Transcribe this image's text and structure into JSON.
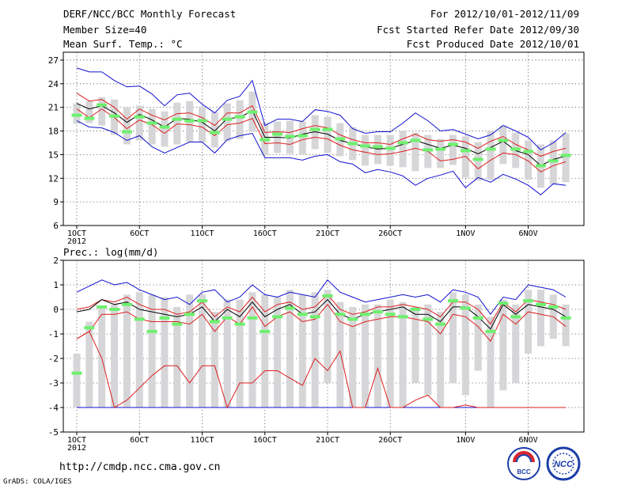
{
  "header": {
    "title": "DERF/NCC/BCC Monthly Forecast",
    "member_size": "Member Size=40",
    "variable": "Mean Surf. Temp.: °C",
    "period": "For 2012/10/01-2012/11/09",
    "fcst_started": "Fcst Started Refer Date 2012/09/30",
    "fcst_produced": "Fcst Produced Date 2012/10/01"
  },
  "footer": {
    "url": "http://cmdp.ncc.cma.gov.cn",
    "credit": "GrADS: COLA/IGES"
  },
  "logos": {
    "left_text": "BCC",
    "right_text": "NCC"
  },
  "colors": {
    "box": "#d6d6d8",
    "median": "#000000",
    "spread": "#dd1f1f",
    "extreme": "#1010d0",
    "obs": "#6ef06e",
    "grid": "#555555"
  },
  "chart_data": [
    {
      "type": "line",
      "title": "Mean Surf. Temp.: °C",
      "ylabel": "°C",
      "ylim": [
        6,
        28
      ],
      "yticks": [
        6,
        9,
        12,
        15,
        18,
        21,
        24,
        27
      ],
      "xlim": [
        1,
        40
      ],
      "x": [
        1,
        2,
        3,
        4,
        5,
        6,
        7,
        8,
        9,
        10,
        11,
        12,
        13,
        14,
        15,
        16,
        17,
        18,
        19,
        20,
        21,
        22,
        23,
        24,
        25,
        26,
        27,
        28,
        29,
        30,
        31,
        32,
        33,
        34,
        35,
        36,
        37,
        38,
        39,
        40
      ],
      "xticks": [
        {
          "day": 1,
          "label": "1OCT",
          "sublabel": "2012"
        },
        {
          "day": 6,
          "label": "6OCT"
        },
        {
          "day": 11,
          "label": "11OCT"
        },
        {
          "day": 16,
          "label": "16OCT"
        },
        {
          "day": 21,
          "label": "21OCT"
        },
        {
          "day": 26,
          "label": "26OCT"
        },
        {
          "day": 32,
          "label": "1NOV"
        },
        {
          "day": 37,
          "label": "6NOV"
        }
      ],
      "series": [
        {
          "name": "box_top",
          "values": [
            21.5,
            21.8,
            22.3,
            22.0,
            21.0,
            21.2,
            20.8,
            20.5,
            21.6,
            21.8,
            21.1,
            20.4,
            21.5,
            21.9,
            23.0,
            19.0,
            19.2,
            19.3,
            19.2,
            20.0,
            19.8,
            19.0,
            18.5,
            17.5,
            17.5,
            17.5,
            18.0,
            17.8,
            17.5,
            17.0,
            17.5,
            17.3,
            16.6,
            18.0,
            18.7,
            17.8,
            16.8,
            16.3,
            16.8,
            17.7
          ]
        },
        {
          "name": "box_bottom",
          "values": [
            18.9,
            19.0,
            18.7,
            17.5,
            16.3,
            16.8,
            16.3,
            16.0,
            16.3,
            16.6,
            16.6,
            15.9,
            16.7,
            17.0,
            17.9,
            14.9,
            15.2,
            15.1,
            15.0,
            15.7,
            15.2,
            14.8,
            14.3,
            13.6,
            13.8,
            13.6,
            13.4,
            12.9,
            13.3,
            13.3,
            13.7,
            12.1,
            11.7,
            11.8,
            13.8,
            13.3,
            11.8,
            10.8,
            11.2,
            11.5
          ]
        },
        {
          "name": "maximum",
          "values": [
            26.0,
            25.5,
            25.5,
            24.4,
            23.6,
            23.7,
            22.7,
            21.2,
            22.6,
            22.8,
            21.4,
            20.3,
            21.9,
            22.4,
            24.4,
            18.7,
            19.5,
            19.5,
            19.2,
            20.7,
            20.5,
            20.0,
            18.3,
            17.7,
            17.9,
            17.9,
            19.0,
            20.3,
            19.3,
            18.0,
            18.2,
            17.6,
            17.0,
            17.5,
            18.7,
            18.0,
            17.2,
            15.6,
            16.5,
            17.8
          ]
        },
        {
          "name": "upper_spread",
          "values": [
            22.8,
            21.8,
            22.0,
            21.0,
            19.5,
            20.8,
            20.0,
            19.4,
            20.2,
            20.3,
            19.7,
            18.7,
            20.3,
            20.3,
            21.2,
            17.8,
            17.9,
            17.8,
            18.3,
            18.7,
            18.4,
            17.5,
            16.9,
            16.5,
            16.5,
            16.3,
            17.0,
            17.6,
            16.9,
            16.7,
            16.9,
            16.6,
            15.8,
            16.7,
            17.3,
            16.3,
            15.6,
            14.8,
            15.4,
            15.8
          ]
        },
        {
          "name": "median",
          "values": [
            21.5,
            20.8,
            21.2,
            20.3,
            19.1,
            20.1,
            19.4,
            18.5,
            19.6,
            19.5,
            19.1,
            18.0,
            19.6,
            19.7,
            20.6,
            17.2,
            17.2,
            17.1,
            17.6,
            17.9,
            17.6,
            16.8,
            16.4,
            16.0,
            15.7,
            15.8,
            16.3,
            16.8,
            16.3,
            15.8,
            16.2,
            15.8,
            15.1,
            15.9,
            16.7,
            15.5,
            15.0,
            13.6,
            14.4,
            14.8
          ]
        },
        {
          "name": "lower_spread",
          "values": [
            20.8,
            19.7,
            20.8,
            19.7,
            18.3,
            19.4,
            18.8,
            17.7,
            18.9,
            18.8,
            18.5,
            17.4,
            18.8,
            19.0,
            19.6,
            16.4,
            16.5,
            16.3,
            16.9,
            17.2,
            17.0,
            16.2,
            15.6,
            15.3,
            15.0,
            15.1,
            15.4,
            15.8,
            15.4,
            14.2,
            14.4,
            14.8,
            13.2,
            14.3,
            15.2,
            15.0,
            14.2,
            12.8,
            13.6,
            14.1
          ]
        },
        {
          "name": "minimum",
          "values": [
            19.3,
            18.5,
            18.4,
            17.8,
            16.8,
            17.4,
            16.0,
            15.2,
            15.9,
            16.6,
            16.6,
            15.2,
            16.9,
            17.4,
            17.7,
            14.6,
            14.6,
            14.6,
            14.3,
            14.8,
            15.0,
            14.1,
            13.8,
            12.7,
            13.1,
            12.8,
            12.3,
            11.1,
            12.0,
            12.4,
            12.9,
            10.8,
            12.1,
            11.5,
            12.5,
            11.9,
            11.1,
            9.9,
            11.3,
            11.1
          ]
        },
        {
          "name": "observation",
          "values": [
            20.0,
            19.6,
            21.3,
            19.9,
            17.9,
            19.8,
            19.0,
            18.5,
            19.5,
            19.3,
            19.3,
            17.8,
            19.5,
            19.8,
            20.4,
            16.9,
            17.6,
            17.3,
            17.4,
            18.2,
            18.2,
            17.0,
            16.4,
            16.1,
            16.0,
            15.8,
            16.5,
            16.8,
            15.6,
            15.7,
            16.3,
            15.5,
            14.4,
            15.7,
            16.8,
            15.7,
            15.4,
            13.6,
            14.2,
            14.9
          ]
        }
      ]
    },
    {
      "type": "line",
      "title": "Prec.: log(mm/d)",
      "ylabel": "log(mm/d)",
      "ylim": [
        -5,
        2
      ],
      "yticks": [
        -5,
        -4,
        -3,
        -2,
        -1,
        0,
        1,
        2
      ],
      "xlim": [
        1,
        40
      ],
      "x": [
        1,
        2,
        3,
        4,
        5,
        6,
        7,
        8,
        9,
        10,
        11,
        12,
        13,
        14,
        15,
        16,
        17,
        18,
        19,
        20,
        21,
        22,
        23,
        24,
        25,
        26,
        27,
        28,
        29,
        30,
        31,
        32,
        33,
        34,
        35,
        36,
        37,
        38,
        39,
        40
      ],
      "xticks": [
        {
          "day": 1,
          "label": "1OCT",
          "sublabel": "2012"
        },
        {
          "day": 6,
          "label": "6OCT"
        },
        {
          "day": 11,
          "label": "11OCT"
        },
        {
          "day": 16,
          "label": "16OCT"
        },
        {
          "day": 21,
          "label": "21OCT"
        },
        {
          "day": 26,
          "label": "26OCT"
        },
        {
          "day": 32,
          "label": "1NOV"
        },
        {
          "day": 37,
          "label": "6NOV"
        }
      ],
      "series": [
        {
          "name": "box_top",
          "values": [
            -1.8,
            -0.5,
            0.1,
            0.2,
            0.6,
            0.7,
            0.6,
            0.5,
            0.1,
            0.6,
            0.6,
            -0.1,
            0.4,
            0.4,
            0.7,
            0.6,
            0.5,
            0.8,
            0.6,
            0.7,
            0.8,
            0.3,
            0.1,
            0.2,
            0.2,
            0.4,
            0.3,
            0.1,
            0.2,
            -0.1,
            0.7,
            0.6,
            0.2,
            -0.3,
            0.4,
            0.2,
            0.8,
            0.8,
            0.6,
            0.2
          ]
        },
        {
          "name": "box_bottom",
          "values": [
            -4.0,
            -4.0,
            -4.0,
            -4.0,
            -4.0,
            -4.0,
            -4.0,
            -4.0,
            -4.0,
            -4.0,
            -4.0,
            -4.0,
            -4.0,
            -4.0,
            -4.0,
            -4.0,
            -4.0,
            -4.0,
            -4.0,
            -4.0,
            -3.0,
            -4.0,
            -4.0,
            -4.0,
            -4.0,
            -4.0,
            -4.0,
            -3.0,
            -3.5,
            -4.0,
            -3.0,
            -3.5,
            -2.5,
            -4.0,
            -3.3,
            -3.0,
            -1.8,
            -1.5,
            -1.2,
            -1.5
          ]
        },
        {
          "name": "maximum",
          "values": [
            0.7,
            0.95,
            1.2,
            1.0,
            1.1,
            0.8,
            0.6,
            0.4,
            0.5,
            0.2,
            0.7,
            0.8,
            0.3,
            0.5,
            1.0,
            0.6,
            0.5,
            0.7,
            0.6,
            0.5,
            1.2,
            0.7,
            0.5,
            0.3,
            0.4,
            0.5,
            0.6,
            0.5,
            0.6,
            0.3,
            0.8,
            0.7,
            0.5,
            -0.2,
            0.5,
            0.4,
            1.0,
            0.9,
            0.8,
            0.5
          ]
        },
        {
          "name": "upper_spread",
          "values": [
            0.0,
            0.1,
            0.4,
            0.3,
            0.5,
            0.2,
            0.0,
            0.0,
            -0.2,
            -0.1,
            0.3,
            -0.3,
            0.1,
            -0.1,
            0.5,
            -0.1,
            0.2,
            0.3,
            0.0,
            0.1,
            0.6,
            0.0,
            -0.2,
            -0.1,
            0.1,
            0.1,
            0.2,
            0.1,
            0.0,
            -0.3,
            0.3,
            0.3,
            0.0,
            -0.6,
            0.3,
            -0.1,
            0.4,
            0.3,
            0.2,
            0.0
          ]
        },
        {
          "name": "median",
          "values": [
            -0.1,
            0.0,
            0.4,
            0.2,
            0.3,
            0.0,
            -0.1,
            -0.2,
            -0.3,
            -0.2,
            0.1,
            -0.5,
            0.0,
            -0.3,
            0.3,
            -0.3,
            0.0,
            0.2,
            -0.2,
            -0.1,
            0.4,
            -0.2,
            -0.4,
            -0.2,
            -0.1,
            0.0,
            0.1,
            -0.2,
            -0.2,
            -0.5,
            0.1,
            0.1,
            -0.3,
            -0.8,
            0.2,
            -0.2,
            0.2,
            0.1,
            0.0,
            -0.3
          ]
        },
        {
          "name": "lower_spread",
          "values": [
            -1.2,
            -0.9,
            -0.2,
            -0.2,
            -0.1,
            -0.4,
            -0.5,
            -0.5,
            -0.5,
            -0.6,
            -0.2,
            -0.9,
            -0.3,
            -0.6,
            0.1,
            -0.7,
            -0.3,
            -0.1,
            -0.5,
            -0.4,
            0.2,
            -0.5,
            -0.7,
            -0.5,
            -0.4,
            -0.3,
            -0.3,
            -0.4,
            -0.5,
            -1.0,
            -0.2,
            -0.3,
            -0.7,
            -1.3,
            -0.2,
            -0.6,
            -0.1,
            -0.2,
            -0.3,
            -0.7
          ]
        },
        {
          "name": "minimum",
          "values": [
            -4.0,
            -4.0,
            -4.0,
            -4.0,
            -4.0,
            -4.0,
            -4.0,
            -4.0,
            -4.0,
            -4.0,
            -4.0,
            -4.0,
            -4.0,
            -4.0,
            -4.0,
            -4.0,
            -4.0,
            -4.0,
            -4.0,
            -4.0,
            -4.0,
            -4.0,
            -4.0,
            -4.0,
            -4.0,
            -4.0,
            -4.0,
            -4.0,
            -4.0,
            -4.0,
            -4.0,
            -4.0,
            -4.0,
            -4.0,
            -4.0,
            -4.0,
            -4.0,
            -4.0,
            -4.0,
            -4.0
          ]
        },
        {
          "name": "lower_extreme_spread",
          "values": [
            -1.2,
            -0.9,
            -2.0,
            -4.0,
            -3.7,
            -3.2,
            -2.7,
            -2.3,
            -2.3,
            -3.0,
            -2.3,
            -2.3,
            -4.0,
            -3.0,
            -3.0,
            -2.5,
            -2.5,
            -2.8,
            -3.1,
            -2.0,
            -2.5,
            -1.7,
            -4.0,
            -4.0,
            -2.4,
            -4.0,
            -4.0,
            -3.7,
            -3.5,
            -4.0,
            -4.0,
            -3.9,
            -4.0,
            -4.0,
            -4.0,
            -4.0,
            -4.0,
            -4.0,
            -4.0,
            -4.0
          ]
        },
        {
          "name": "observation",
          "values": [
            -2.6,
            -0.75,
            0.1,
            0.0,
            0.2,
            -0.4,
            -0.9,
            -0.35,
            -0.6,
            -0.2,
            0.35,
            -0.5,
            -0.35,
            -0.6,
            -0.35,
            -0.9,
            -0.3,
            0.05,
            -0.2,
            -0.3,
            0.55,
            -0.2,
            -0.4,
            -0.2,
            -0.1,
            -0.2,
            -0.3,
            0.0,
            -0.4,
            -0.6,
            0.35,
            0.05,
            -0.35,
            -0.9,
            0.25,
            -0.3,
            0.35,
            0.2,
            0.1,
            -0.35
          ]
        }
      ]
    }
  ]
}
